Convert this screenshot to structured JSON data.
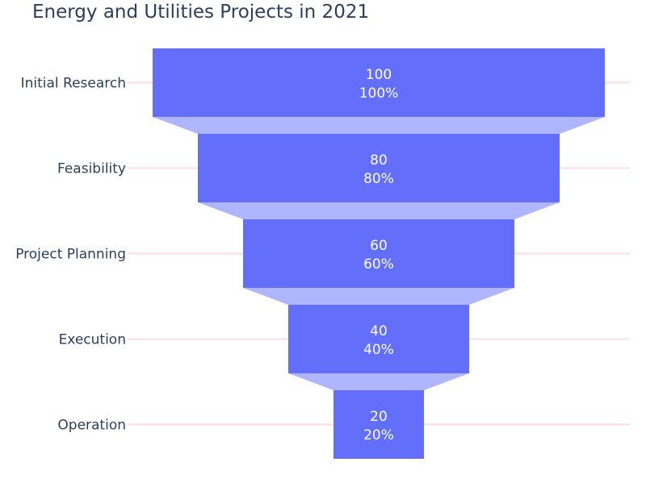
{
  "chart_data": {
    "type": "funnel",
    "title": "Energy and Utilities Projects in 2021",
    "categories": [
      "Initial Research",
      "Feasibility",
      "Project Planning",
      "Execution",
      "Operation"
    ],
    "values": [
      100,
      80,
      60,
      40,
      20
    ],
    "percent_labels": [
      "100%",
      "80%",
      "60%",
      "40%",
      "20%"
    ],
    "xlabel": "",
    "ylabel": "",
    "colors": {
      "bar": "#636efa",
      "connector": "#b0b6fd",
      "gridline": "#fcdde5",
      "label_text": "#ffffff",
      "axis_text": "#2a3f5f"
    }
  }
}
